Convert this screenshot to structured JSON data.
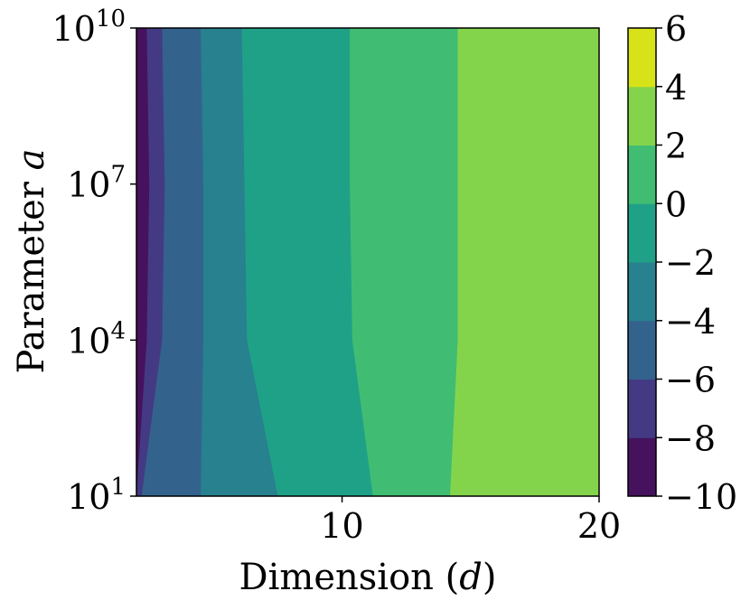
{
  "chart_data": {
    "type": "contour",
    "xlabel_prefix": "Dimension (",
    "xlabel_var": "d",
    "xlabel_suffix": ")",
    "ylabel_prefix": "Parameter ",
    "ylabel_var": "a",
    "x_range": [
      2,
      20
    ],
    "x_ticks": [
      {
        "value": 10,
        "label": "10"
      },
      {
        "value": 20,
        "label": "20"
      }
    ],
    "y_scale": "log",
    "y_range_log10": [
      1,
      10
    ],
    "y_ticks": [
      {
        "log10": 1,
        "base": "10",
        "exp": "1"
      },
      {
        "log10": 4,
        "base": "10",
        "exp": "4"
      },
      {
        "log10": 7,
        "base": "10",
        "exp": "7"
      },
      {
        "log10": 10,
        "base": "10",
        "exp": "10"
      }
    ],
    "colorbar": {
      "levels": [
        -10,
        -8,
        -6,
        -4,
        -2,
        0,
        2,
        4,
        6
      ],
      "tick_labels": [
        "−10",
        "−8",
        "−6",
        "−4",
        "−2",
        "0",
        "2",
        "4",
        "6"
      ],
      "colors": [
        "#46125e",
        "#443a83",
        "#33638d",
        "#28818e",
        "#1fa188",
        "#40bd72",
        "#84d44b",
        "#d8e219"
      ]
    },
    "contour_boundaries": [
      {
        "level": -8,
        "d_at_log_a": [
          [
            1,
            2.0
          ],
          [
            4,
            2.4
          ],
          [
            7,
            2.5
          ],
          [
            10,
            2.4
          ]
        ]
      },
      {
        "level": -6,
        "d_at_log_a": [
          [
            1,
            2.2
          ],
          [
            4,
            3.0
          ],
          [
            7,
            3.1
          ],
          [
            10,
            3.0
          ]
        ]
      },
      {
        "level": -4,
        "d_at_log_a": [
          [
            1,
            4.5
          ],
          [
            4,
            4.6
          ],
          [
            7,
            4.6
          ],
          [
            10,
            4.5
          ]
        ]
      },
      {
        "level": -2,
        "d_at_log_a": [
          [
            1,
            7.5
          ],
          [
            4,
            6.3
          ],
          [
            7,
            6.2
          ],
          [
            10,
            6.1
          ]
        ]
      },
      {
        "level": 0,
        "d_at_log_a": [
          [
            1,
            11.2
          ],
          [
            4,
            10.4
          ],
          [
            7,
            10.3
          ],
          [
            10,
            10.3
          ]
        ]
      },
      {
        "level": 2,
        "d_at_log_a": [
          [
            1,
            14.2
          ],
          [
            4,
            14.5
          ],
          [
            7,
            14.5
          ],
          [
            10,
            14.5
          ]
        ]
      }
    ]
  }
}
